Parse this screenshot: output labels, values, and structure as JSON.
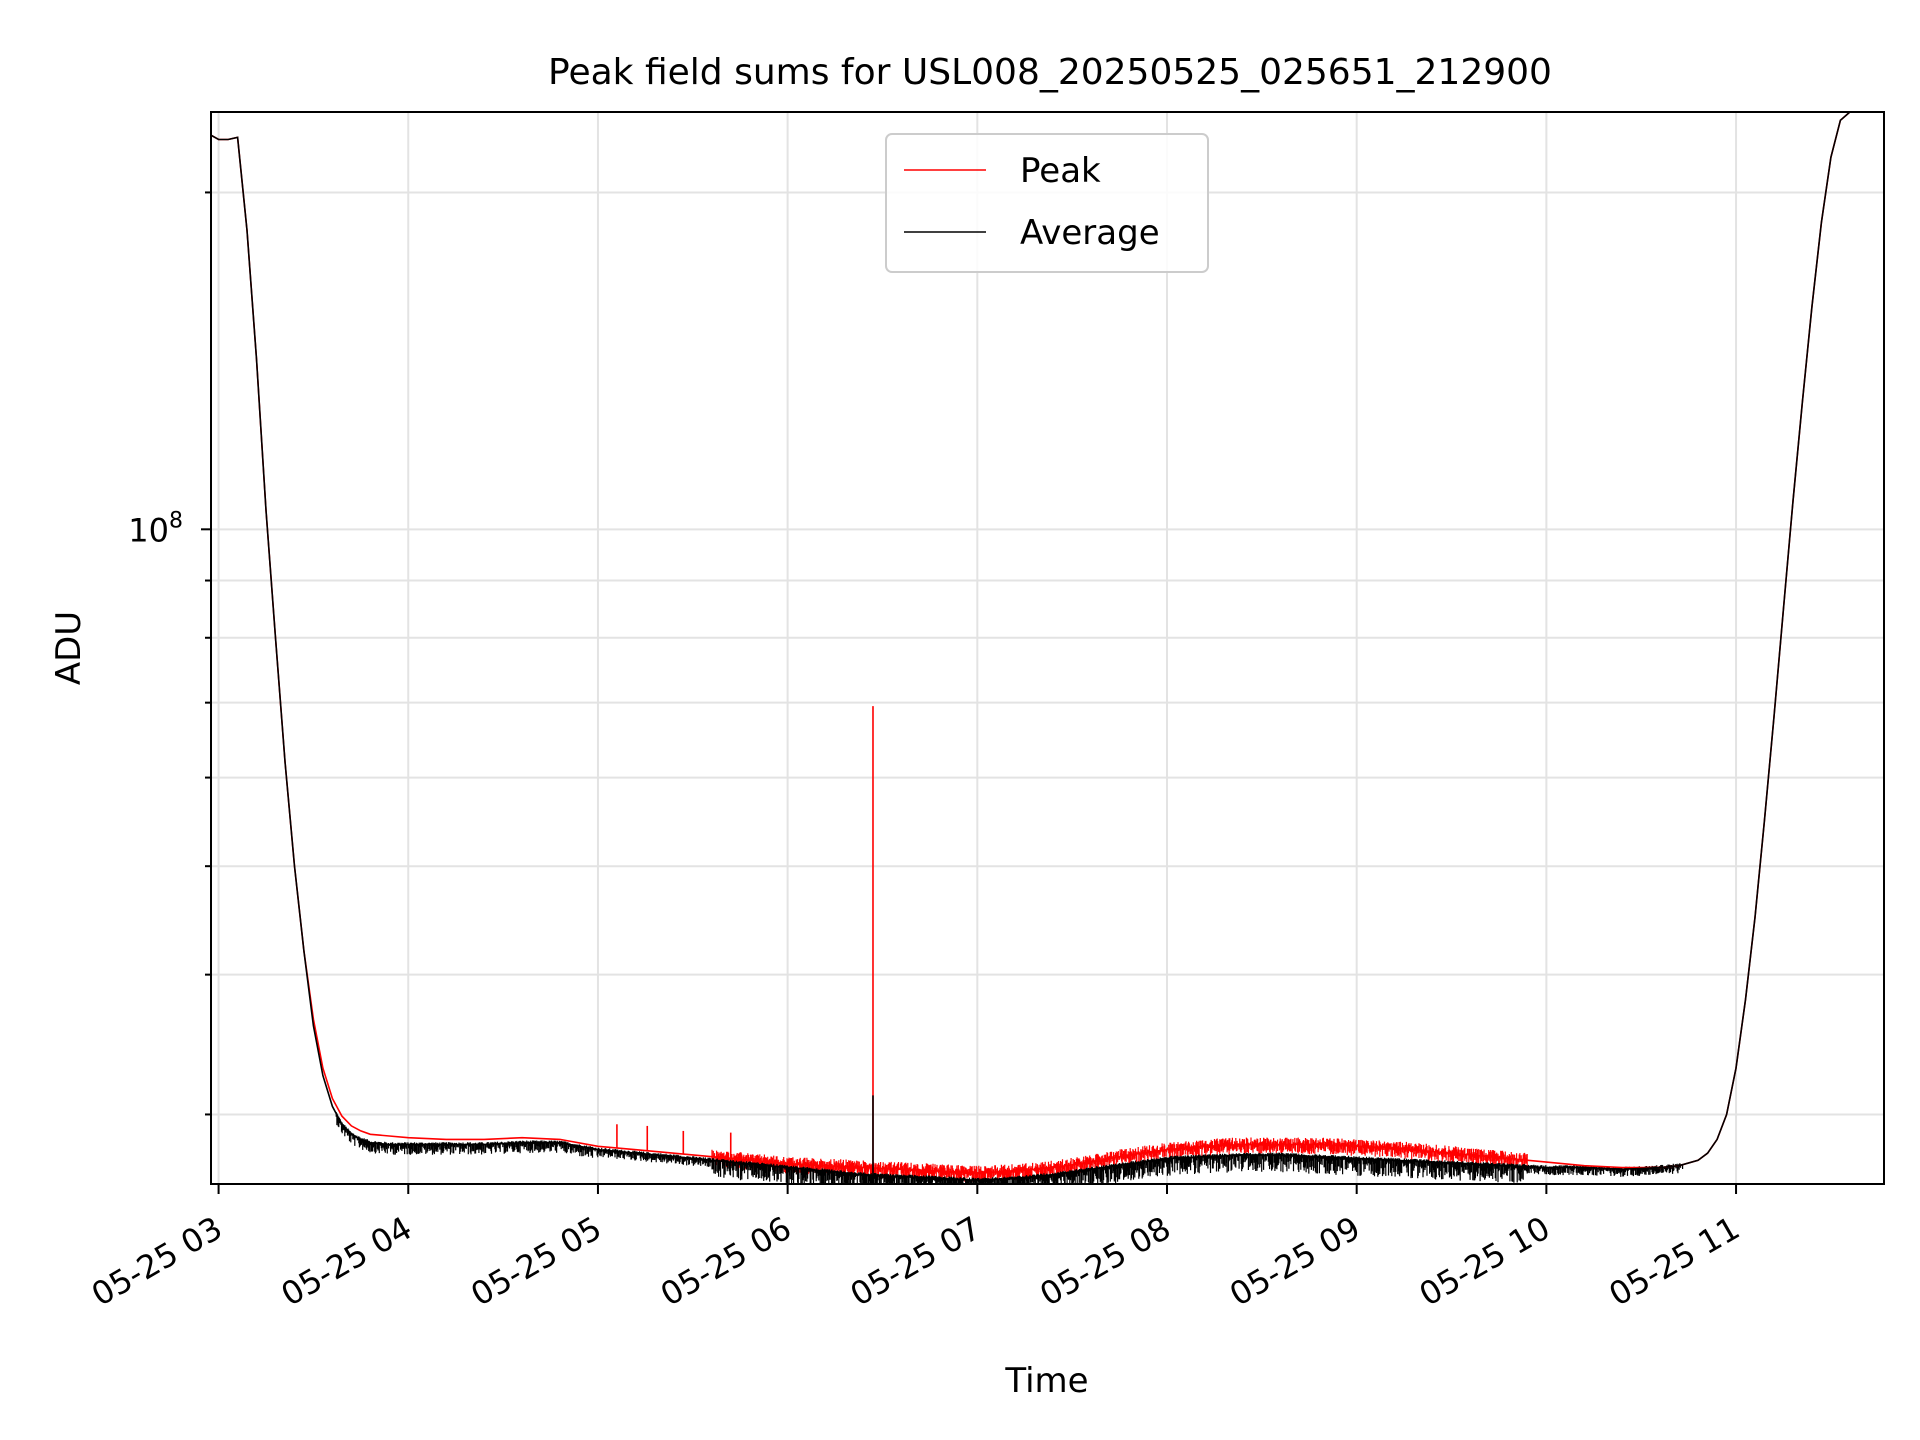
{
  "chart_data": {
    "type": "line",
    "title": "Peak field sums for USL008_20250525_025651_212900",
    "xlabel": "Time",
    "ylabel": "ADU",
    "yscale": "log",
    "grid": true,
    "legend_position": "top-center",
    "x_ticks": [
      "05-25 03",
      "05-25 04",
      "05-25 05",
      "05-25 06",
      "05-25 07",
      "05-25 08",
      "05-25 09",
      "05-25 10",
      "05-25 11"
    ],
    "x_tick_hours": [
      3,
      4,
      5,
      6,
      7,
      8,
      9,
      10,
      11
    ],
    "y_major_ticks": [
      {
        "value": 100000000,
        "mantissa": "10",
        "exponent": "8"
      }
    ],
    "y_minor_ticks": [
      30000000,
      40000000,
      50000000,
      60000000,
      70000000,
      80000000,
      90000000,
      200000000
    ],
    "xlim_hours": [
      2.96,
      11.78
    ],
    "ylim": [
      26000000,
      236000000
    ],
    "series": [
      {
        "name": "Peak",
        "color": "#ff0000",
        "x_hours": [
          2.96,
          3.0,
          3.05,
          3.1,
          3.15,
          3.2,
          3.25,
          3.3,
          3.35,
          3.4,
          3.45,
          3.5,
          3.55,
          3.6,
          3.65,
          3.7,
          3.75,
          3.8,
          3.9,
          4.0,
          4.2,
          4.4,
          4.6,
          4.8,
          5.0,
          5.2,
          5.4,
          5.6,
          5.8,
          6.0,
          6.2,
          6.4,
          6.6,
          6.8,
          7.0,
          7.2,
          7.4,
          7.6,
          7.8,
          8.0,
          8.2,
          8.4,
          8.6,
          8.8,
          9.0,
          9.2,
          9.4,
          9.6,
          9.8,
          10.0,
          10.2,
          10.4,
          10.6,
          10.7,
          10.8,
          10.85,
          10.9,
          10.95,
          11.0,
          11.05,
          11.1,
          11.15,
          11.2,
          11.25,
          11.3,
          11.35,
          11.4,
          11.45,
          11.5,
          11.55,
          11.6,
          11.65,
          11.7,
          11.78
        ],
        "y": [
          225000000,
          223000000,
          223000000,
          224000000,
          185000000,
          142000000,
          104000000,
          80000000,
          62000000,
          50000000,
          42000000,
          36500000,
          33000000,
          31000000,
          29900000,
          29300000,
          29000000,
          28800000,
          28700000,
          28600000,
          28500000,
          28500000,
          28600000,
          28500000,
          28100000,
          27900000,
          27700000,
          27500000,
          27300000,
          27100000,
          27000000,
          26900000,
          26800000,
          26700000,
          26600000,
          26700000,
          26900000,
          27200000,
          27600000,
          27900000,
          28100000,
          28200000,
          28200000,
          28200000,
          28100000,
          28000000,
          27800000,
          27600000,
          27400000,
          27200000,
          27000000,
          26900000,
          26900000,
          27000000,
          27300000,
          27700000,
          28500000,
          30000000,
          33000000,
          38000000,
          45000000,
          55000000,
          68000000,
          85000000,
          106000000,
          130000000,
          158000000,
          188000000,
          215000000,
          232000000,
          236000000,
          236000000,
          236000000,
          236000000
        ],
        "spikes": [
          {
            "x_hour": 6.45,
            "y": 69500000
          },
          {
            "x_hour": 5.1,
            "y": 29400000
          },
          {
            "x_hour": 5.26,
            "y": 29300000
          },
          {
            "x_hour": 5.45,
            "y": 29000000
          },
          {
            "x_hour": 5.7,
            "y": 28900000
          }
        ]
      },
      {
        "name": "Average",
        "color": "#000000",
        "x_hours": [
          2.96,
          3.0,
          3.05,
          3.1,
          3.15,
          3.2,
          3.25,
          3.3,
          3.35,
          3.4,
          3.45,
          3.5,
          3.55,
          3.6,
          3.65,
          3.7,
          3.75,
          3.8,
          3.9,
          4.0,
          4.2,
          4.4,
          4.6,
          4.8,
          5.0,
          5.2,
          5.4,
          5.6,
          5.8,
          6.0,
          6.2,
          6.4,
          6.6,
          6.8,
          7.0,
          7.2,
          7.4,
          7.6,
          7.8,
          8.0,
          8.2,
          8.4,
          8.6,
          8.8,
          9.0,
          9.2,
          9.4,
          9.6,
          9.8,
          10.0,
          10.2,
          10.4,
          10.6,
          10.7,
          10.8,
          10.85,
          10.9,
          10.95,
          11.0,
          11.05,
          11.1,
          11.15,
          11.2,
          11.25,
          11.3,
          11.35,
          11.4,
          11.45,
          11.5,
          11.55,
          11.6,
          11.65,
          11.7,
          11.78
        ],
        "y": [
          225000000,
          223000000,
          223000000,
          224000000,
          185000000,
          142000000,
          104000000,
          80000000,
          62000000,
          50000000,
          42000000,
          36000000,
          32500000,
          30500000,
          29400000,
          28800000,
          28500000,
          28300000,
          28200000,
          28200000,
          28200000,
          28200000,
          28300000,
          28300000,
          27900000,
          27700000,
          27500000,
          27300000,
          27100000,
          26900000,
          26700000,
          26500000,
          26400000,
          26300000,
          26200000,
          26300000,
          26500000,
          26800000,
          27100000,
          27400000,
          27500000,
          27600000,
          27600000,
          27500000,
          27400000,
          27300000,
          27200000,
          27100000,
          27000000,
          26900000,
          26900000,
          26800000,
          26900000,
          27000000,
          27300000,
          27700000,
          28500000,
          30000000,
          33000000,
          38000000,
          45000000,
          55000000,
          68000000,
          85000000,
          106000000,
          130000000,
          158000000,
          188000000,
          215000000,
          232000000,
          236000000,
          236000000,
          236000000,
          236000000
        ],
        "spikes": [
          {
            "x_hour": 6.45,
            "y": 31200000
          }
        ]
      }
    ]
  }
}
